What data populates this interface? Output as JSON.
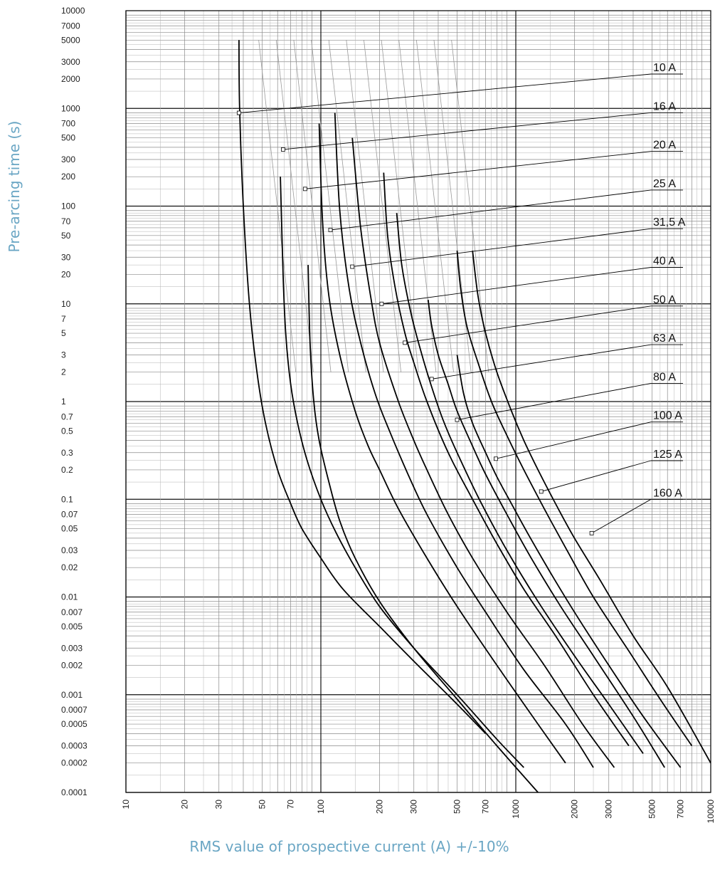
{
  "chart_data": {
    "type": "line",
    "title": "",
    "xlabel": "RMS value of prospective current (A) +/-10%",
    "ylabel": "Pre-arcing time (s)",
    "x_scale": "log",
    "y_scale": "log",
    "xlim": [
      10,
      10000
    ],
    "ylim": [
      0.0001,
      10000
    ],
    "grid": true,
    "x_ticks": [
      "10",
      "20",
      "30",
      "50",
      "70",
      "100",
      "200",
      "300",
      "500",
      "700",
      "1000",
      "2000",
      "3000",
      "5000",
      "7000",
      "10000"
    ],
    "y_ticks": [
      "10000",
      "7000",
      "5000",
      "3000",
      "2000",
      "1000",
      "700",
      "500",
      "300",
      "200",
      "100",
      "70",
      "50",
      "30",
      "20",
      "10",
      "7",
      "5",
      "3",
      "2",
      "1",
      "0.7",
      "0.5",
      "0.3",
      "0.2",
      "0.1",
      "0.07",
      "0.05",
      "0.03",
      "0.02",
      "0.01",
      "0.007",
      "0.005",
      "0.003",
      "0.002",
      "0.001",
      "0.0007",
      "0.0005",
      "0.0003",
      "0.0002",
      "0.0001"
    ],
    "series": [
      {
        "name": "10 A",
        "label_point": [
          38,
          900
        ],
        "x": [
          38,
          38.3,
          40,
          43,
          47,
          52,
          60,
          70,
          80,
          100,
          130,
          200,
          300,
          500,
          700
        ],
        "y": [
          5000,
          1000,
          100,
          10,
          2,
          0.6,
          0.2,
          0.09,
          0.05,
          0.025,
          0.012,
          0.005,
          0.0022,
          0.0008,
          0.0004
        ]
      },
      {
        "name": "16 A",
        "label_point": [
          64,
          380
        ],
        "x": [
          62,
          64,
          66,
          70,
          76,
          85,
          100,
          120,
          150,
          200,
          300,
          500,
          800,
          1100
        ],
        "y": [
          200,
          20,
          5,
          1.5,
          0.6,
          0.25,
          0.1,
          0.045,
          0.02,
          0.008,
          0.003,
          0.001,
          0.00035,
          0.00018
        ]
      },
      {
        "name": "20 A",
        "label_point": [
          83,
          150
        ],
        "x": [
          86,
          88,
          92,
          98,
          110,
          125,
          150,
          200,
          300,
          500,
          800,
          1300
        ],
        "y": [
          25,
          4,
          1,
          0.4,
          0.15,
          0.06,
          0.025,
          0.009,
          0.003,
          0.0009,
          0.0003,
          0.0001
        ]
      },
      {
        "name": "25 A",
        "label_point": [
          112,
          57
        ],
        "x": [
          98,
          102,
          110,
          125,
          150,
          175,
          200,
          250,
          350,
          500,
          800,
          1300,
          1800
        ],
        "y": [
          700,
          70,
          12,
          3,
          0.8,
          0.35,
          0.2,
          0.08,
          0.025,
          0.008,
          0.002,
          0.0005,
          0.0002
        ]
      },
      {
        "name": "31,5 A",
        "label_point": [
          145,
          24
        ],
        "x": [
          118,
          125,
          140,
          160,
          190,
          225,
          280,
          350,
          500,
          700,
          1100,
          1800,
          2500
        ],
        "y": [
          900,
          90,
          14,
          4,
          1.2,
          0.5,
          0.18,
          0.07,
          0.02,
          0.007,
          0.0018,
          0.0005,
          0.00018
        ]
      },
      {
        "name": "40 A",
        "label_point": [
          205,
          10
        ],
        "x": [
          145,
          160,
          180,
          200,
          250,
          300,
          350,
          450,
          600,
          900,
          1400,
          2200,
          3200
        ],
        "y": [
          500,
          60,
          12,
          4,
          1,
          0.4,
          0.2,
          0.07,
          0.025,
          0.007,
          0.002,
          0.0005,
          0.00018
        ]
      },
      {
        "name": "50 A",
        "label_point": [
          270,
          4
        ],
        "x": [
          210,
          220,
          240,
          270,
          300,
          350,
          450,
          600,
          800,
          1100,
          1600,
          2500,
          3800
        ],
        "y": [
          220,
          50,
          15,
          5,
          2.5,
          1,
          0.3,
          0.1,
          0.035,
          0.012,
          0.004,
          0.001,
          0.0003
        ]
      },
      {
        "name": "63 A",
        "label_point": [
          370,
          1.7
        ],
        "x": [
          245,
          260,
          290,
          330,
          380,
          430,
          500,
          650,
          900,
          1300,
          2000,
          3000,
          4500
        ],
        "y": [
          85,
          25,
          8,
          3,
          1.2,
          0.6,
          0.3,
          0.1,
          0.03,
          0.009,
          0.0025,
          0.0008,
          0.00025
        ]
      },
      {
        "name": "80 A",
        "label_point": [
          500,
          0.65
        ],
        "x": [
          355,
          370,
          400,
          450,
          500,
          600,
          700,
          900,
          1200,
          1700,
          2500,
          4000,
          5800
        ],
        "y": [
          11,
          6,
          3,
          1.5,
          0.8,
          0.35,
          0.18,
          0.07,
          0.025,
          0.008,
          0.0025,
          0.0006,
          0.00018
        ]
      },
      {
        "name": "100 A",
        "label_point": [
          790,
          0.26
        ],
        "x": [
          500,
          540,
          600,
          700,
          800,
          950,
          1150,
          1500,
          2000,
          3000,
          4500,
          7000
        ],
        "y": [
          3,
          1.2,
          0.6,
          0.3,
          0.17,
          0.09,
          0.045,
          0.018,
          0.007,
          0.002,
          0.0006,
          0.00018
        ]
      },
      {
        "name": "125 A",
        "label_point": [
          1350,
          0.12
        ],
        "x": [
          500,
          520,
          560,
          640,
          750,
          900,
          1100,
          1400,
          1800,
          2500,
          3800,
          5500,
          8000
        ],
        "y": [
          35,
          15,
          6,
          2.5,
          1,
          0.45,
          0.2,
          0.08,
          0.032,
          0.01,
          0.0028,
          0.0009,
          0.0003
        ]
      },
      {
        "name": "160 A",
        "label_point": [
          2450,
          0.045
        ],
        "x": [
          600,
          640,
          700,
          800,
          950,
          1100,
          1300,
          1600,
          2000,
          2700,
          4000,
          6000,
          10000
        ],
        "y": [
          35,
          12,
          5,
          2,
          0.8,
          0.4,
          0.2,
          0.09,
          0.04,
          0.015,
          0.004,
          0.0012,
          0.0002
        ]
      }
    ]
  }
}
